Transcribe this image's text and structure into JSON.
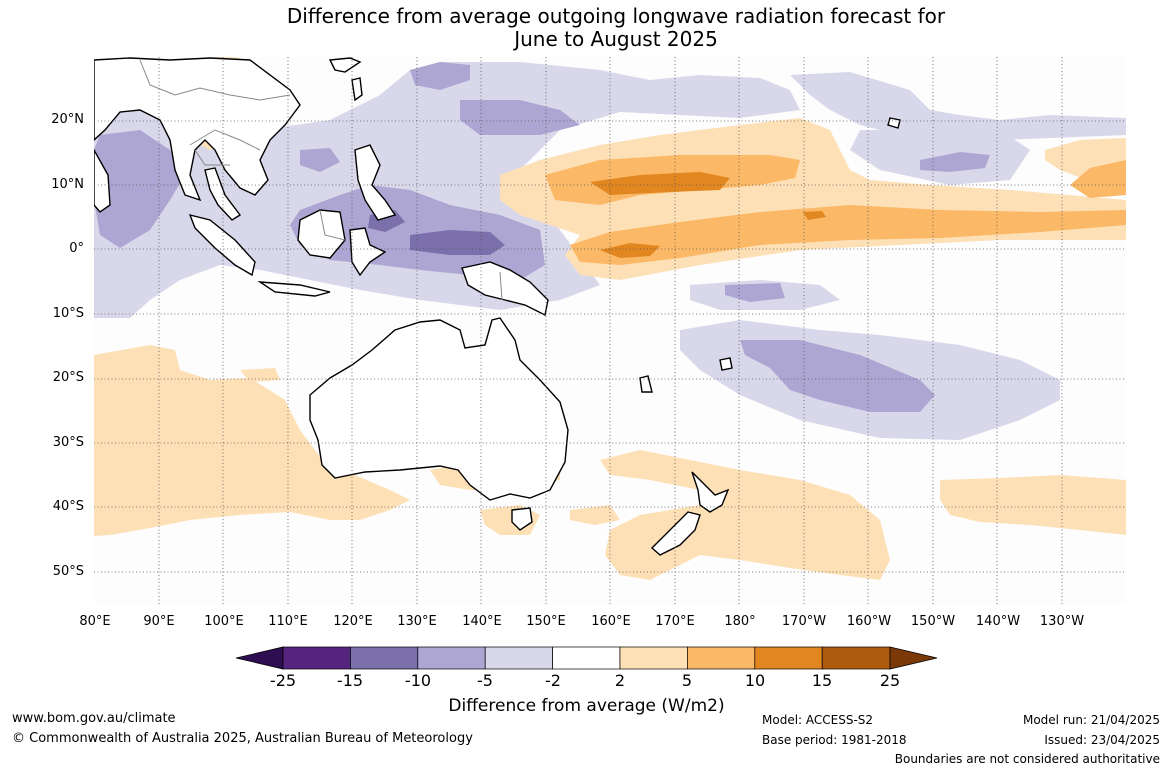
{
  "title": {
    "line1": "Difference from average outgoing longwave radiation forecast for",
    "line2": "June to August 2025"
  },
  "map": {
    "lat_labels": [
      "20°N",
      "10°N",
      "0°",
      "10°S",
      "20°S",
      "30°S",
      "40°S",
      "50°S"
    ],
    "lon_labels": [
      "80°E",
      "90°E",
      "100°E",
      "110°E",
      "120°E",
      "130°E",
      "140°E",
      "150°E",
      "160°E",
      "170°E",
      "180°",
      "170°W",
      "160°W",
      "150°W",
      "140°W",
      "130°W"
    ],
    "land_fill": "#ffffff",
    "coastline_color": "#000000",
    "border_color": "#888888",
    "grid": "dotted"
  },
  "colorbar": {
    "ticks": [
      "-25",
      "-15",
      "-10",
      "-5",
      "-2",
      "2",
      "5",
      "10",
      "15",
      "25"
    ],
    "colors": [
      "#2e0d50",
      "#55247f",
      "#7b6fac",
      "#ada5d2",
      "#d8d8ea",
      "#ffffff",
      "#fde0b6",
      "#fbb866",
      "#e28620",
      "#af5b0e",
      "#7b3908"
    ],
    "label": "Difference from average (W/m2)"
  },
  "footer": {
    "url": "www.bom.gov.au/climate",
    "copyright": "© Commonwealth of Australia 2025, Australian Bureau of Meteorology",
    "model": "Model: ACCESS-S2",
    "base_period": "Base period: 1981-2018",
    "model_run": "Model run: 21/04/2025",
    "issued": "Issued: 23/04/2025",
    "disclaimer": "Boundaries are not considered authoritative"
  }
}
